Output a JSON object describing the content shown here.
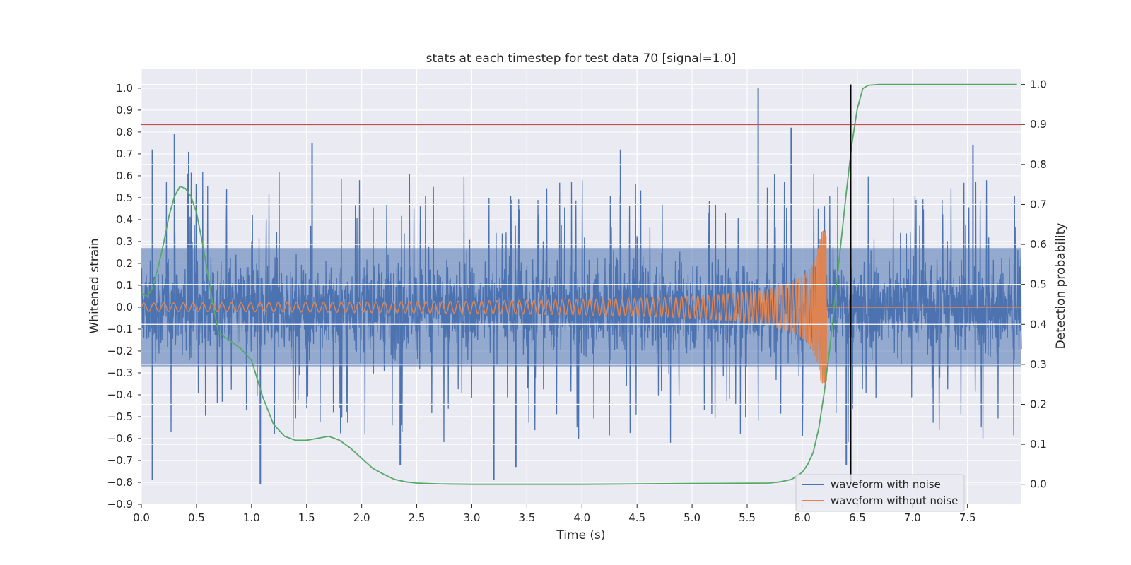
{
  "chart_data": {
    "type": "line",
    "title": "stats at each timestep for test data 70 [signal=1.0]",
    "xlabel": "Time (s)",
    "ylabel_left": "Whitened strain",
    "ylabel_right": "Detection probability",
    "xlim": [
      0.0,
      7.99
    ],
    "ylim_left": [
      -0.9,
      1.09
    ],
    "ylim_right": [
      -0.05,
      1.04
    ],
    "x_ticks": [
      "0.0",
      "0.5",
      "1.0",
      "1.5",
      "2.0",
      "2.5",
      "3.0",
      "3.5",
      "4.0",
      "4.5",
      "5.0",
      "5.5",
      "6.0",
      "6.5",
      "7.0",
      "7.5"
    ],
    "y_left_ticks": [
      "−0.9",
      "−0.8",
      "−0.7",
      "−0.6",
      "−0.5",
      "−0.4",
      "−0.3",
      "−0.2",
      "−0.1",
      "0.0",
      "0.1",
      "0.2",
      "0.3",
      "0.4",
      "0.5",
      "0.6",
      "0.7",
      "0.8",
      "0.9",
      "1.0"
    ],
    "y_right_ticks": [
      "0.0",
      "0.1",
      "0.2",
      "0.3",
      "0.4",
      "0.5",
      "0.6",
      "0.7",
      "0.8",
      "0.9",
      "1.0"
    ],
    "grid": true,
    "legend_position": "lower-right",
    "series": [
      {
        "name": "waveform with noise",
        "axis": "left",
        "color": "#4c72b0",
        "kind": "noise",
        "x_range": [
          0.0,
          7.99
        ],
        "band": [
          -0.3,
          0.3
        ],
        "peaks": [
          {
            "x": 0.1,
            "y": 0.72
          },
          {
            "x": 0.3,
            "y": 0.79
          },
          {
            "x": 0.43,
            "y": 0.71
          },
          {
            "x": 1.08,
            "y": -0.81
          },
          {
            "x": 0.1,
            "y": -0.79
          },
          {
            "x": 1.55,
            "y": 0.75
          },
          {
            "x": 3.2,
            "y": -0.79
          },
          {
            "x": 4.35,
            "y": 0.72
          },
          {
            "x": 5.6,
            "y": 1.0
          },
          {
            "x": 5.9,
            "y": 0.82
          },
          {
            "x": 7.55,
            "y": 0.74
          },
          {
            "x": 6.4,
            "y": -0.72
          },
          {
            "x": 3.4,
            "y": -0.73
          },
          {
            "x": 2.35,
            "y": -0.72
          }
        ]
      },
      {
        "name": "waveform without noise",
        "axis": "left",
        "color": "#dd8452",
        "kind": "chirp",
        "x_range": [
          0.0,
          7.99
        ],
        "merger_time": 6.22,
        "peak_amplitude": 0.35
      },
      {
        "axis": "right",
        "color": "#55a868",
        "kind": "line",
        "x": [
          0.0,
          0.05,
          0.1,
          0.15,
          0.2,
          0.25,
          0.3,
          0.35,
          0.4,
          0.45,
          0.5,
          0.55,
          0.6,
          0.65,
          0.7,
          0.75,
          0.8,
          0.9,
          1.0,
          1.1,
          1.2,
          1.3,
          1.4,
          1.5,
          1.6,
          1.7,
          1.8,
          1.9,
          2.0,
          2.1,
          2.2,
          2.3,
          2.4,
          2.5,
          2.7,
          3.0,
          4.0,
          5.0,
          5.7,
          5.8,
          5.9,
          5.95,
          6.0,
          6.05,
          6.1,
          6.15,
          6.2,
          6.25,
          6.3,
          6.35,
          6.4,
          6.45,
          6.5,
          6.55,
          6.6,
          6.7,
          7.0,
          7.5,
          7.95
        ],
        "values": [
          0.48,
          0.47,
          0.49,
          0.54,
          0.6,
          0.67,
          0.72,
          0.745,
          0.74,
          0.72,
          0.68,
          0.61,
          0.53,
          0.45,
          0.38,
          0.37,
          0.36,
          0.34,
          0.31,
          0.22,
          0.15,
          0.12,
          0.11,
          0.11,
          0.115,
          0.12,
          0.11,
          0.09,
          0.065,
          0.04,
          0.025,
          0.012,
          0.006,
          0.003,
          0.001,
          0.0,
          0.0,
          0.002,
          0.003,
          0.006,
          0.012,
          0.02,
          0.03,
          0.05,
          0.08,
          0.14,
          0.23,
          0.34,
          0.47,
          0.6,
          0.73,
          0.85,
          0.94,
          0.99,
          0.998,
          1.0,
          1.0,
          1.0,
          1.0
        ]
      }
    ],
    "annotations": {
      "threshold_line": {
        "axis": "right",
        "y": 0.9,
        "color": "#c44e52"
      },
      "vertical_line": {
        "x": 6.44,
        "color": "#000000"
      }
    }
  }
}
